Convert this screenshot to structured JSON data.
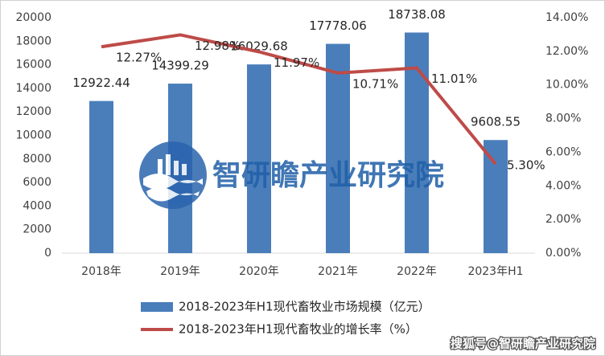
{
  "chart_data": {
    "type": "bar",
    "categories": [
      "2018年",
      "2019年",
      "2020年",
      "2021年",
      "2022年",
      "2023年H1"
    ],
    "series": [
      {
        "name": "2018-2023年H1现代畜牧业市场规模（亿元）",
        "type": "bar",
        "color": "#4a7ebb",
        "values": [
          12922.44,
          14399.29,
          16029.68,
          17778.06,
          18738.08,
          9608.55
        ]
      },
      {
        "name": "2018-2023年H1现代畜牧业的增长率（%）",
        "type": "line",
        "axis": "y2",
        "color": "#be4b48",
        "values": [
          12.27,
          12.98,
          11.97,
          10.71,
          11.01,
          5.3
        ],
        "value_labels": [
          "12.27%",
          "12.98%",
          "11.97%",
          "10.71%",
          "11.01%",
          "5.30%"
        ]
      }
    ],
    "ylim": [
      0,
      20000
    ],
    "yticks": [
      0,
      2000,
      4000,
      6000,
      8000,
      10000,
      12000,
      14000,
      16000,
      18000,
      20000
    ],
    "y2lim": [
      0,
      14
    ],
    "y2ticks": [
      {
        "value": 0,
        "label": "0.00%"
      },
      {
        "value": 2,
        "label": "2.00%"
      },
      {
        "value": 4,
        "label": "4.00%"
      },
      {
        "value": 6,
        "label": "6.00%"
      },
      {
        "value": 8,
        "label": "8.00%"
      },
      {
        "value": 10,
        "label": "10.00%"
      },
      {
        "value": 12,
        "label": "12.00%"
      },
      {
        "value": 14,
        "label": "14.00%"
      }
    ],
    "legend": "bottom",
    "watermark": "智研瞻产业研究院",
    "footer": "搜狐号@智研瞻产业研究院"
  }
}
